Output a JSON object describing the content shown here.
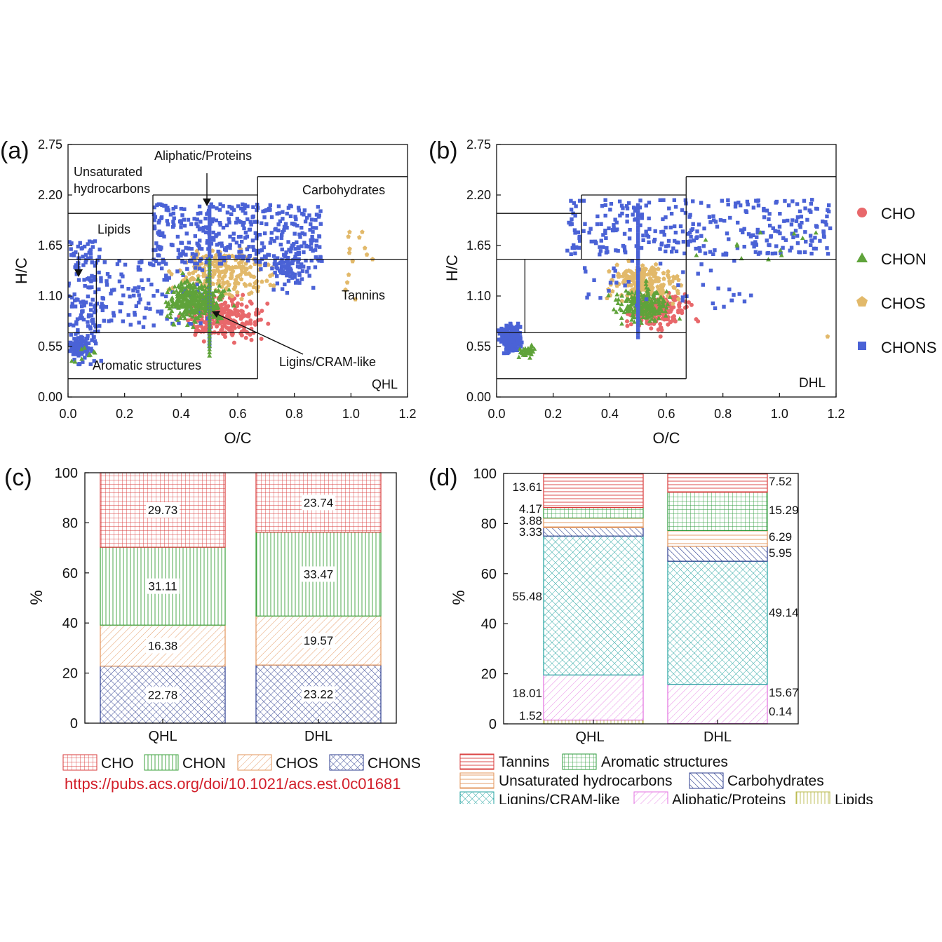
{
  "colors": {
    "CHO": "#e8686b",
    "CHON": "#5fa33a",
    "CHOS": "#e2b96a",
    "CHONS": "#4a62d6",
    "tannins": "#d93a3a",
    "aromatic": "#2e9b3c",
    "unsat": "#e3945a",
    "carbo": "#2c3d8f",
    "lignins": "#23a3a0",
    "aliphatic": "#e36fe0",
    "lipids": "#b8b84a",
    "url": "#d21f2a"
  },
  "chart_data": [
    {
      "type": "scatter",
      "panel_label": "(a)",
      "sample": "QHL",
      "xlabel": "O/C",
      "ylabel": "H/C",
      "xlim": [
        0,
        1.2
      ],
      "ylim": [
        0,
        2.75
      ],
      "x_ticks": [
        "0.0",
        "0.2",
        "0.4",
        "0.6",
        "0.8",
        "1.0",
        "1.2"
      ],
      "y_ticks": [
        "0.00",
        "0.55",
        "1.10",
        "1.65",
        "2.20",
        "2.75"
      ],
      "region_labels": {
        "unsat_line1": "Unsaturated",
        "unsat_line2": "hydrocarbons",
        "aliphatic": "Aliphatic/Proteins",
        "carbohydrates": "Carbohydrates",
        "lipids": "Lipids",
        "tannins": "Tannins",
        "aromatic": "Aromatic structures",
        "lignins": "Ligins/CRAM-like"
      },
      "regions": [
        {
          "name": "Lipids",
          "o_c": [
            0,
            0.3
          ],
          "h_c": [
            1.5,
            2.0
          ]
        },
        {
          "name": "Aliphatic/Proteins",
          "o_c": [
            0.3,
            0.67
          ],
          "h_c": [
            1.5,
            2.2
          ]
        },
        {
          "name": "Carbohydrates",
          "o_c": [
            0.67,
            1.2
          ],
          "h_c": [
            1.5,
            2.4
          ]
        },
        {
          "name": "Unsaturated hydrocarbons",
          "o_c": [
            0,
            0.1
          ],
          "h_c": [
            0.7,
            1.5
          ]
        },
        {
          "name": "Lignins/CRAM-like",
          "o_c": [
            0.1,
            0.67
          ],
          "h_c": [
            0.7,
            1.5
          ]
        },
        {
          "name": "Tannins",
          "o_c": [
            0.67,
            1.2
          ],
          "h_c": [
            0.5,
            1.5
          ]
        },
        {
          "name": "Aromatic structures",
          "o_c": [
            0,
            0.67
          ],
          "h_c": [
            0.2,
            0.7
          ]
        }
      ]
    },
    {
      "type": "scatter",
      "panel_label": "(b)",
      "sample": "DHL",
      "xlabel": "O/C",
      "ylabel": "H/C",
      "xlim": [
        0,
        1.2
      ],
      "ylim": [
        0,
        2.75
      ],
      "x_ticks": [
        "0.0",
        "0.2",
        "0.4",
        "0.6",
        "0.8",
        "1.0",
        "1.2"
      ],
      "y_ticks": [
        "0.00",
        "0.55",
        "1.10",
        "1.65",
        "2.20",
        "2.75"
      ]
    },
    {
      "type": "bar",
      "stacked": true,
      "panel_label": "(c)",
      "ylabel": "%",
      "ylim": [
        0,
        100
      ],
      "y_ticks": [
        "0",
        "20",
        "40",
        "60",
        "80",
        "100"
      ],
      "categories": [
        "QHL",
        "DHL"
      ],
      "series": [
        {
          "name": "CHONS",
          "values": [
            22.78,
            23.22
          ],
          "labels": [
            "22.78",
            "23.22"
          ]
        },
        {
          "name": "CHOS",
          "values": [
            16.38,
            19.57
          ],
          "labels": [
            "16.38",
            "19.57"
          ]
        },
        {
          "name": "CHON",
          "values": [
            31.11,
            33.47
          ],
          "labels": [
            "31.11",
            "33.47"
          ]
        },
        {
          "name": "CHO",
          "values": [
            29.73,
            23.74
          ],
          "labels": [
            "29.73",
            "23.74"
          ]
        }
      ],
      "legend": [
        "CHO",
        "CHON",
        "CHOS",
        "CHONS"
      ]
    },
    {
      "type": "bar",
      "stacked": true,
      "panel_label": "(d)",
      "ylabel": "%",
      "ylim": [
        0,
        100
      ],
      "y_ticks": [
        "0",
        "20",
        "40",
        "60",
        "80",
        "100"
      ],
      "categories": [
        "QHL",
        "DHL"
      ],
      "series": [
        {
          "name": "Lipids",
          "values": [
            1.52,
            0.14
          ],
          "labels": [
            "1.52",
            "0.14"
          ]
        },
        {
          "name": "Aliphatic/Proteins",
          "values": [
            18.01,
            15.67
          ],
          "labels": [
            "18.01",
            "15.67"
          ]
        },
        {
          "name": "Lignins/CRAM-like",
          "values": [
            55.48,
            49.14
          ],
          "labels": [
            "55.48",
            "49.14"
          ]
        },
        {
          "name": "Carbohydrates",
          "values": [
            3.33,
            5.95
          ],
          "labels": [
            "3.33",
            "5.95"
          ]
        },
        {
          "name": "Unsaturated hydrocarbons",
          "values": [
            3.88,
            6.29
          ],
          "labels": [
            "3.88",
            "6.29"
          ]
        },
        {
          "name": "Aromatic structures",
          "values": [
            4.17,
            15.29
          ],
          "labels": [
            "4.17",
            "15.29"
          ]
        },
        {
          "name": "Tannins",
          "values": [
            13.61,
            7.52
          ],
          "labels": [
            "13.61",
            "7.52"
          ]
        }
      ],
      "legend": [
        "Tannins",
        "Aromatic structures",
        "Unsaturated hydrocarbons",
        "Carbohydrates",
        "Lignins/CRAM-like",
        "Aliphatic/Proteins",
        "Lipids"
      ]
    }
  ],
  "scatter_legend": [
    "CHO",
    "CHON",
    "CHOS",
    "CHONS"
  ],
  "c_legend": {
    "cho": "CHO",
    "chon": "CHON",
    "chos": "CHOS",
    "chons": "CHONS"
  },
  "d_legend": {
    "tannins": "Tannins",
    "aromatic": "Aromatic structures",
    "unsat": "Unsaturated hydrocarbons",
    "carbo": "Carbohydrates",
    "lignins": "Lignins/CRAM-like",
    "aliphatic": "Aliphatic/Proteins",
    "lipids": "Lipids"
  },
  "source_url": "https://pubs.acs.org/doi/10.1021/acs.est.0c01681"
}
